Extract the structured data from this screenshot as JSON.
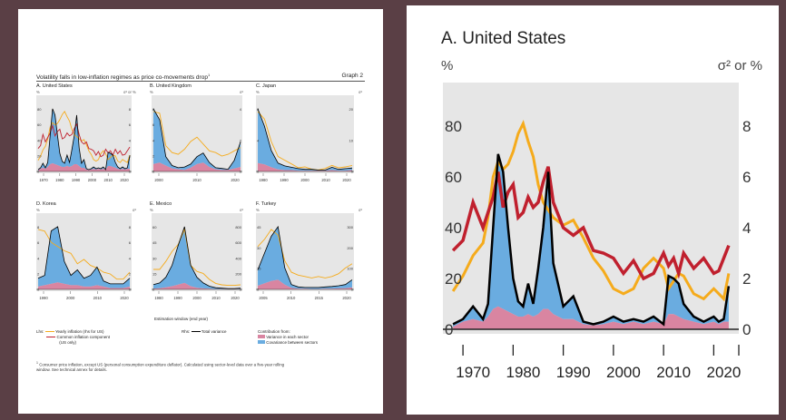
{
  "page": {
    "title": "Volatility falls in low-inflation regimes as price co-movements drop",
    "title_note": "1",
    "graph_label": "Graph 2",
    "shared_axis_label": "Estimation window (end year)",
    "legend": {
      "lhs_label": "Lhs:",
      "yearly_inflation": "Yearly inflation (rhs for US)",
      "common_component": "Common inflation component",
      "common_component_note": "(US only)",
      "rhs_label": "Rhs:",
      "total_variance": "Total variance",
      "contribution_label": "Contribution from:",
      "variance_sector": "Variance in each sector",
      "covariance_sectors": "Covariance between sectors"
    },
    "footnote": "Consumer price inflation, except US (personal consumption expenditure deflator). Calculated using sector-level data over a five-year rolling",
    "footnote_2": "window. See technical annex for details.",
    "footnote_mark": "1"
  },
  "colors": {
    "background": "#5a3f45",
    "plot_bg": "#e6e6e6",
    "inflation": "#f5ab1c",
    "common": "#c0202e",
    "variance_sector": "#d985a1",
    "covariance": "#6aace0",
    "total": "#000000"
  },
  "chart_data": [
    {
      "id": "us",
      "type": "area",
      "title": "A. United States",
      "lhs_unit": "%",
      "rhs_unit": "σ² or %",
      "x_ticks": [
        "1970",
        "1980",
        "1990",
        "2000",
        "2010",
        "2020"
      ],
      "x_tick_values": [
        1970,
        1980,
        1990,
        2000,
        2010,
        2020
      ],
      "xlim": [
        1964,
        2023
      ],
      "lhs_ticks": [
        "0",
        "20",
        "40",
        "60",
        "80"
      ],
      "rhs_ticks": [
        "0",
        "2",
        "4",
        "6",
        "8"
      ],
      "ylim": [
        0,
        9
      ],
      "years": [
        1966,
        1968,
        1970,
        1972,
        1973,
        1974,
        1975,
        1976,
        1977,
        1978,
        1979,
        1980,
        1981,
        1982,
        1983,
        1984,
        1985,
        1986,
        1988,
        1990,
        1992,
        1994,
        1996,
        1998,
        2000,
        2002,
        2004,
        2006,
        2008,
        2009,
        2010,
        2011,
        2012,
        2014,
        2016,
        2018,
        2019,
        2020,
        2021
      ],
      "series": [
        {
          "name": "Yearly inflation",
          "axis": "rhs",
          "values": [
            1.5,
            2.1,
            2.9,
            3.4,
            4.4,
            6.0,
            6.6,
            6.3,
            6.5,
            7.0,
            7.7,
            8.1,
            7.4,
            6.8,
            5.7,
            5.0,
            4.7,
            4.4,
            4.1,
            4.3,
            3.6,
            2.8,
            2.3,
            1.6,
            1.4,
            1.6,
            2.4,
            2.8,
            2.4,
            1.6,
            1.9,
            2.2,
            2.1,
            1.4,
            1.2,
            1.6,
            1.4,
            1.2,
            2.2
          ]
        },
        {
          "name": "Common inflation component",
          "axis": "lhs",
          "values": [
            31,
            35,
            50,
            40,
            46,
            52,
            62,
            48,
            54,
            57,
            44,
            46,
            52,
            48,
            50,
            58,
            64,
            50,
            40,
            37,
            40,
            31,
            30,
            28,
            22,
            27,
            20,
            22,
            30,
            25,
            28,
            22,
            30,
            24,
            28,
            22,
            23,
            28,
            33
          ]
        },
        {
          "name": "Total variance",
          "axis": "rhs",
          "values": [
            0.2,
            0.4,
            0.9,
            0.4,
            1.0,
            4.0,
            6.9,
            6.2,
            4.0,
            2.0,
            1.1,
            0.9,
            1.8,
            1.0,
            2.4,
            4.0,
            6.2,
            2.6,
            0.9,
            1.3,
            0.3,
            0.2,
            0.3,
            0.5,
            0.3,
            0.4,
            0.3,
            0.5,
            0.2,
            2.1,
            2.0,
            1.8,
            1.0,
            0.5,
            0.3,
            0.5,
            0.3,
            0.4,
            1.7
          ]
        },
        {
          "name": "Variance in each sector",
          "axis": "rhs",
          "values": [
            0.1,
            0.3,
            0.4,
            0.3,
            0.5,
            0.8,
            0.9,
            0.8,
            0.7,
            0.6,
            0.5,
            0.5,
            0.6,
            0.5,
            0.6,
            0.8,
            0.8,
            0.6,
            0.4,
            0.4,
            0.2,
            0.15,
            0.2,
            0.3,
            0.2,
            0.3,
            0.2,
            0.3,
            0.2,
            0.6,
            0.6,
            0.5,
            0.4,
            0.3,
            0.2,
            0.3,
            0.2,
            0.3,
            0.3
          ]
        }
      ]
    },
    {
      "id": "uk",
      "type": "area",
      "title": "B. United Kingdom",
      "lhs_unit": "%",
      "rhs_unit": "σ²",
      "x_ticks": [
        "2000",
        "2010",
        "2020"
      ],
      "lhs_ticks": [
        "0",
        "2",
        "4",
        "6",
        "8"
      ],
      "rhs_ticks": [
        "0",
        "2",
        "4"
      ],
      "inflation": [
        7,
        6.8,
        3,
        2.2,
        2,
        2.6,
        3.5,
        4,
        3.2,
        2.4,
        2.2,
        1.8,
        2,
        2.4,
        2.8
      ],
      "total": [
        8.5,
        7,
        2,
        0.8,
        0.5,
        0.6,
        1,
        2,
        2.5,
        1.2,
        0.5,
        0.4,
        0.3,
        1.5,
        4
      ],
      "variance": [
        1,
        1.2,
        0.8,
        0.4,
        0.3,
        0.2,
        0.5,
        1,
        1.2,
        0.6,
        0.3,
        0.2,
        0.2,
        0.4,
        0.6
      ]
    },
    {
      "id": "jp",
      "type": "area",
      "title": "C. Japan",
      "lhs_unit": "%",
      "rhs_unit": "σ²",
      "x_ticks": [
        "1980",
        "1990",
        "2000",
        "2010",
        "2020"
      ],
      "lhs_ticks": [
        "0",
        "4",
        "8"
      ],
      "rhs_ticks": [
        "0",
        "10",
        "20"
      ],
      "inflation": [
        8,
        7,
        4,
        2,
        1.5,
        1,
        0.5,
        0.6,
        0.3,
        0.2,
        0.4,
        0.8,
        0.5,
        0.6,
        0.8
      ],
      "total": [
        9,
        6.5,
        3,
        1.2,
        0.8,
        0.6,
        0.4,
        0.3,
        0.3,
        0.2,
        0.2,
        0.6,
        0.3,
        0.4,
        0.5
      ],
      "variance": [
        1.2,
        1,
        0.6,
        0.3,
        0.2,
        0.2,
        0.1,
        0.1,
        0.1,
        0.1,
        0.1,
        0.2,
        0.1,
        0.1,
        0.2
      ]
    },
    {
      "id": "kr",
      "type": "area",
      "title": "D. Korea",
      "lhs_unit": "%",
      "rhs_unit": "σ²",
      "x_ticks": [
        "1990",
        "2000",
        "2010",
        "2020"
      ],
      "lhs_ticks": [
        "0",
        "2",
        "4",
        "6",
        "8"
      ],
      "rhs_ticks": [
        "0",
        "2",
        "4",
        "6",
        "8"
      ],
      "inflation": [
        7,
        6.8,
        5.5,
        5,
        4.5,
        4.2,
        3,
        3.5,
        2.8,
        2.5,
        2,
        1.8,
        1.2,
        1.2,
        2
      ],
      "total": [
        0.8,
        1,
        4.2,
        4.5,
        2,
        1,
        1.4,
        0.8,
        1,
        1.6,
        0.6,
        0.4,
        0.4,
        0.4,
        0.8
      ],
      "variance": [
        0.2,
        0.3,
        0.4,
        0.5,
        0.4,
        0.3,
        0.3,
        0.2,
        0.2,
        0.3,
        0.2,
        0.1,
        0.1,
        0.1,
        0.2
      ]
    },
    {
      "id": "mx",
      "type": "area",
      "title": "E. Mexico",
      "lhs_unit": "%",
      "rhs_unit": "σ²",
      "x_ticks": [
        "1980",
        "1990",
        "2000",
        "2010",
        "2020"
      ],
      "lhs_ticks": [
        "0",
        "15",
        "30",
        "45",
        "60"
      ],
      "rhs_ticks": [
        "0",
        "200",
        "400",
        "600",
        "800"
      ],
      "inflation": [
        20,
        20,
        28,
        38,
        45,
        60,
        24,
        18,
        16,
        10,
        6,
        4.5,
        4,
        4,
        4.5
      ],
      "total": [
        60,
        80,
        150,
        300,
        550,
        780,
        300,
        150,
        80,
        40,
        20,
        15,
        10,
        10,
        15
      ],
      "variance": [
        10,
        15,
        25,
        40,
        60,
        80,
        40,
        20,
        12,
        8,
        5,
        4,
        3,
        3,
        4
      ]
    },
    {
      "id": "tr",
      "type": "area",
      "title": "F. Turkey",
      "lhs_unit": "%",
      "rhs_unit": "σ²",
      "x_ticks": [
        "2005",
        "2010",
        "2015",
        "2020"
      ],
      "lhs_ticks": [
        "0",
        "15",
        "30",
        "45"
      ],
      "rhs_ticks": [
        "0",
        "100",
        "200",
        "300"
      ],
      "inflation": [
        30,
        35,
        42,
        38,
        20,
        12,
        10,
        9,
        8,
        9,
        8,
        9,
        11,
        15,
        18
      ],
      "total": [
        80,
        150,
        220,
        260,
        90,
        20,
        10,
        8,
        8,
        8,
        10,
        12,
        15,
        20,
        40
      ],
      "variance": [
        15,
        25,
        35,
        40,
        20,
        6,
        3,
        3,
        2,
        2,
        3,
        3,
        4,
        5,
        8
      ]
    }
  ]
}
